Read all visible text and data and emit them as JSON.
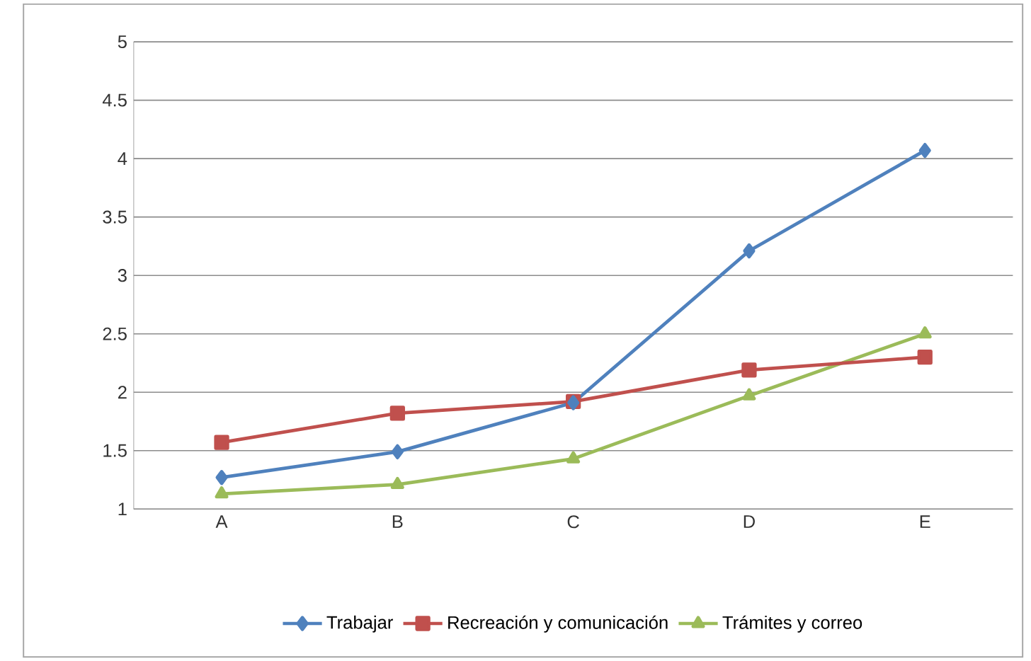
{
  "chart_data": {
    "type": "line",
    "categories": [
      "A",
      "B",
      "C",
      "D",
      "E"
    ],
    "series": [
      {
        "name": "Trabajar",
        "color": "#4f81bd",
        "marker": "diamond",
        "values": [
          1.27,
          1.49,
          1.91,
          3.21,
          4.07
        ]
      },
      {
        "name": "Recreación y comunicación",
        "color": "#c0504d",
        "marker": "square",
        "values": [
          1.57,
          1.82,
          1.92,
          2.19,
          2.3
        ]
      },
      {
        "name": "Trámites y correo",
        "color": "#9bbb59",
        "marker": "triangle",
        "values": [
          1.13,
          1.21,
          1.43,
          1.97,
          2.5
        ]
      }
    ],
    "ylim": [
      1,
      5
    ],
    "yticks": [
      1,
      1.5,
      2,
      2.5,
      3,
      3.5,
      4,
      4.5,
      5
    ],
    "grid": "y",
    "legend": "bottom",
    "line_style": "solid"
  }
}
